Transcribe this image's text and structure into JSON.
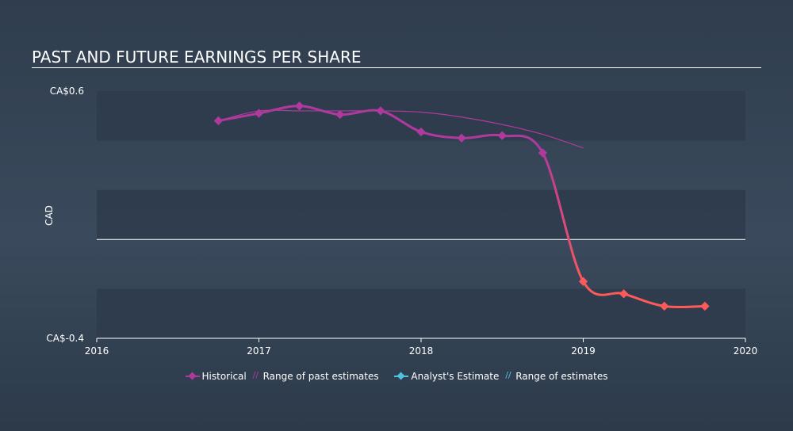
{
  "header": {
    "title": "PAST AND FUTURE EARNINGS PER SHARE"
  },
  "colors": {
    "historical": "#b0399e",
    "historical_negative": "#ff5a5a",
    "past_estimates": "#b0399e",
    "analyst_estimate": "#4cc3e0",
    "range_estimates": "#4cc3e0",
    "band": "#2e3b4c",
    "zero_line": "#ffffff"
  },
  "chart_data": {
    "type": "line",
    "title": "PAST AND FUTURE EARNINGS PER SHARE",
    "ylabel": "CAD",
    "xlim": [
      2016,
      2020
    ],
    "ylim": [
      -0.4,
      0.6
    ],
    "y_tick_labels": [
      "CA$0.6",
      "CA$-0.4"
    ],
    "x_tick_labels": [
      "2016",
      "2017",
      "2018",
      "2019",
      "2020"
    ],
    "series": [
      {
        "name": "Historical",
        "x": [
          2016.75,
          2017.0,
          2017.25,
          2017.5,
          2017.75,
          2018.0,
          2018.25,
          2018.5,
          2018.75,
          2019.0,
          2019.25,
          2019.5,
          2019.75
        ],
        "values": [
          0.48,
          0.51,
          0.54,
          0.505,
          0.52,
          0.435,
          0.41,
          0.42,
          0.35,
          -0.17,
          -0.22,
          -0.27,
          -0.27
        ]
      },
      {
        "name": "Range of past estimates",
        "x": [
          2016.75,
          2017.0,
          2017.25,
          2017.5,
          2017.75,
          2018.0,
          2018.25,
          2018.5,
          2018.75,
          2019.0
        ],
        "values": [
          0.48,
          0.52,
          0.52,
          0.52,
          0.52,
          0.515,
          0.495,
          0.465,
          0.425,
          0.37
        ]
      }
    ]
  },
  "legend": {
    "historical": "Historical",
    "past_estimates": "Range of past estimates",
    "analyst_estimate": "Analyst's Estimate",
    "range_estimates": "Range of estimates"
  }
}
